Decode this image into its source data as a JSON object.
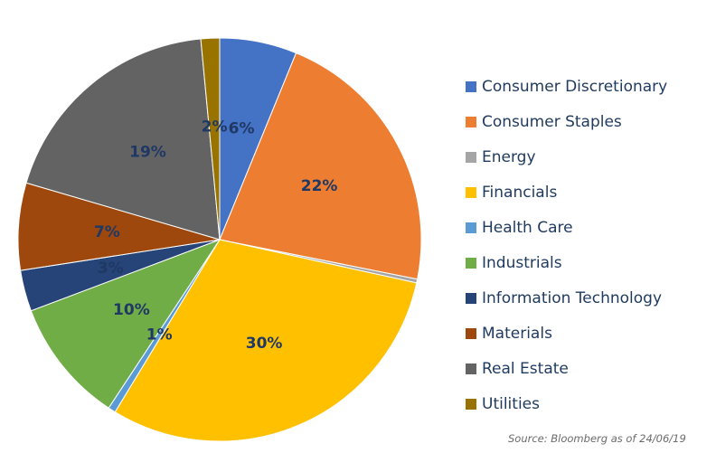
{
  "chart_data": {
    "type": "pie",
    "categories": [
      "Consumer Discretionary",
      "Consumer Staples",
      "Energy",
      "Financials",
      "Health Care",
      "Industrials",
      "Information Technology",
      "Materials",
      "Real Estate",
      "Utilities"
    ],
    "values": [
      6.2,
      22.0,
      0.3,
      30.3,
      0.6,
      10.0,
      3.3,
      7.0,
      19.0,
      1.5
    ],
    "data_labels": [
      "6%",
      "22%",
      "",
      "30%",
      "1%",
      "10%",
      "3%",
      "7%",
      "19%",
      "2%"
    ],
    "colors": [
      "#4472c4",
      "#ed7d31",
      "#a5a5a5",
      "#ffc000",
      "#5b9bd5",
      "#70ad47",
      "#264478",
      "#9e480e",
      "#636363",
      "#997300"
    ],
    "start_angle_deg": 0,
    "direction": "clockwise",
    "legend_position": "right"
  },
  "source": "Source: Bloomberg as of 24/06/19"
}
